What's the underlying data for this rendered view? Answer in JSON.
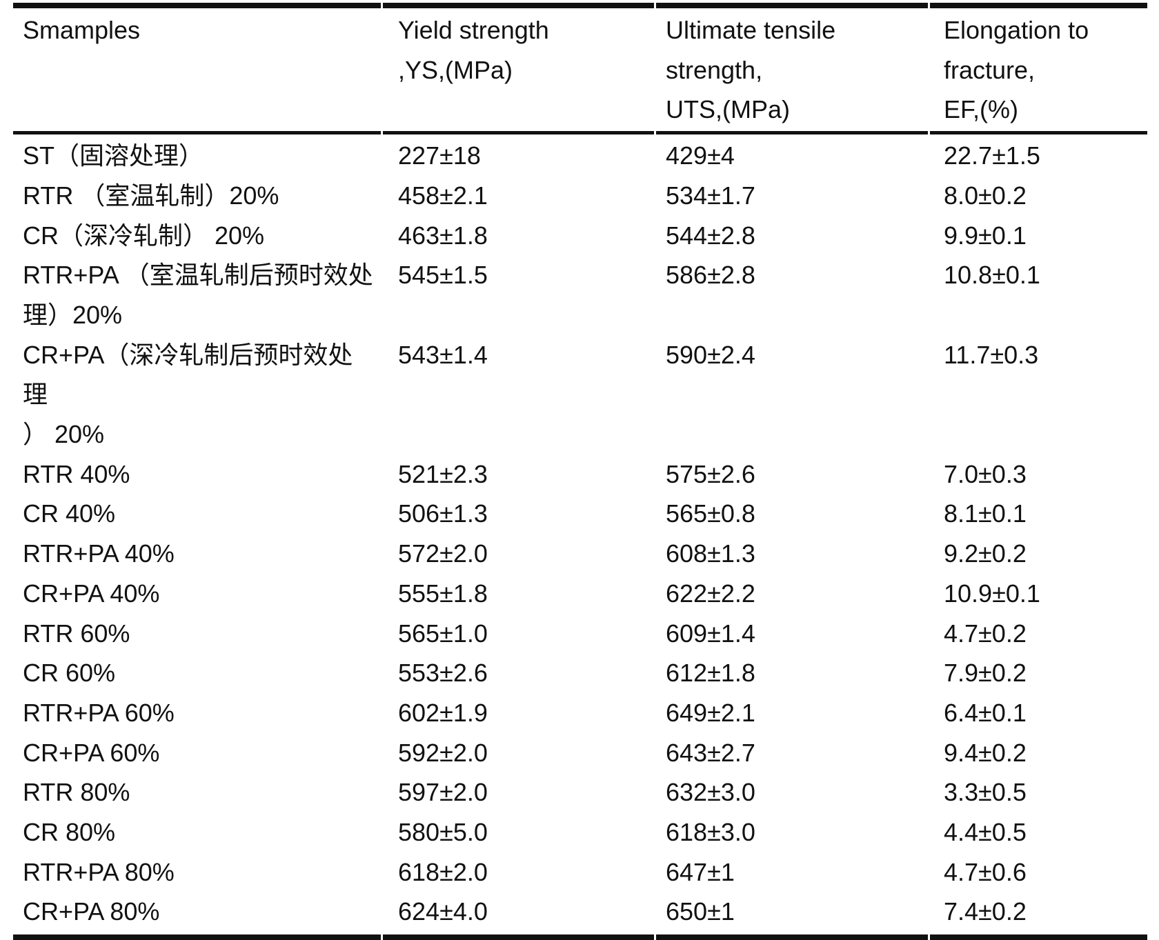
{
  "colors": {
    "background": "#ffffff",
    "text": "#111111",
    "rule": "#111111"
  },
  "table": {
    "columns": [
      "Smamples",
      "Yield strength\n,YS,(MPa)",
      "Ultimate tensile\nstrength,\nUTS,(MPa)",
      "Elongation to\nfracture,\nEF,(%)"
    ],
    "rows": [
      {
        "sample": "ST（固溶处理）",
        "ys": "227±18",
        "uts": "429±4",
        "ef": "22.7±1.5"
      },
      {
        "sample": "RTR （室温轧制）20%",
        "ys": "458±2.1",
        "uts": "534±1.7",
        "ef": "8.0±0.2"
      },
      {
        "sample": "CR（深冷轧制） 20%",
        "ys": "463±1.8",
        "uts": "544±2.8",
        "ef": "9.9±0.1"
      },
      {
        "sample": "RTR+PA （室温轧制后预时效处\n理）20%",
        "ys": "545±1.5",
        "uts": "586±2.8",
        "ef": "10.8±0.1"
      },
      {
        "sample": "CR+PA（深冷轧制后预时效处理\n） 20%",
        "ys": "543±1.4",
        "uts": "590±2.4",
        "ef": "11.7±0.3"
      },
      {
        "sample": "RTR 40%",
        "ys": "521±2.3",
        "uts": "575±2.6",
        "ef": "7.0±0.3"
      },
      {
        "sample": "CR 40%",
        "ys": "506±1.3",
        "uts": "565±0.8",
        "ef": "8.1±0.1"
      },
      {
        "sample": "RTR+PA 40%",
        "ys": "572±2.0",
        "uts": "608±1.3",
        "ef": "9.2±0.2"
      },
      {
        "sample": "CR+PA 40%",
        "ys": "555±1.8",
        "uts": "622±2.2",
        "ef": "10.9±0.1"
      },
      {
        "sample": "RTR 60%",
        "ys": "565±1.0",
        "uts": "609±1.4",
        "ef": "4.7±0.2"
      },
      {
        "sample": "CR 60%",
        "ys": "553±2.6",
        "uts": "612±1.8",
        "ef": "7.9±0.2"
      },
      {
        "sample": "RTR+PA 60%",
        "ys": "602±1.9",
        "uts": "649±2.1",
        "ef": "6.4±0.1"
      },
      {
        "sample": "CR+PA 60%",
        "ys": "592±2.0",
        "uts": "643±2.7",
        "ef": "9.4±0.2"
      },
      {
        "sample": "RTR 80%",
        "ys": "597±2.0",
        "uts": "632±3.0",
        "ef": "3.3±0.5"
      },
      {
        "sample": "CR 80%",
        "ys": "580±5.0",
        "uts": "618±3.0",
        "ef": "4.4±0.5"
      },
      {
        "sample": "RTR+PA 80%",
        "ys": "618±2.0",
        "uts": "647±1",
        "ef": "4.7±0.6"
      },
      {
        "sample": "CR+PA 80%",
        "ys": "624±4.0",
        "uts": "650±1",
        "ef": "7.4±0.2"
      }
    ]
  }
}
